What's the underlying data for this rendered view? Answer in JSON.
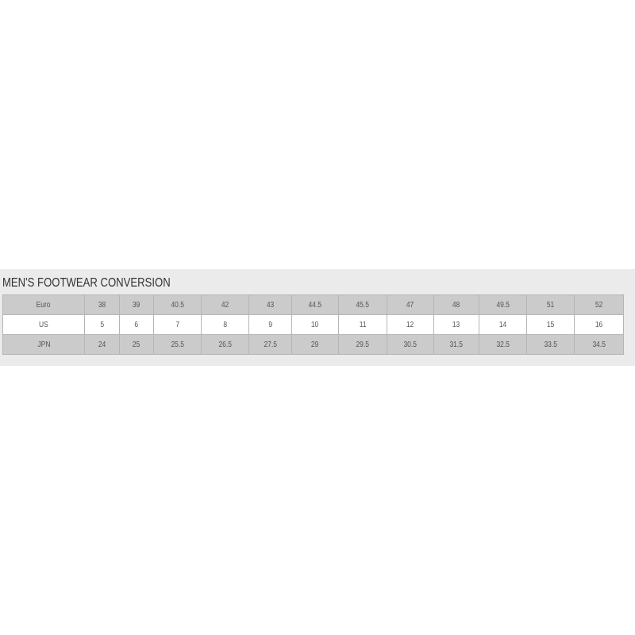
{
  "title": "MEN'S FOOTWEAR CONVERSION",
  "rows": [
    {
      "label": "Euro",
      "values": [
        "38",
        "39",
        "40.5",
        "42",
        "43",
        "44.5",
        "45.5",
        "47",
        "48",
        "49.5",
        "51",
        "52"
      ]
    },
    {
      "label": "US",
      "values": [
        "5",
        "6",
        "7",
        "8",
        "9",
        "10",
        "11",
        "12",
        "13",
        "14",
        "15",
        "16"
      ]
    },
    {
      "label": "JPN",
      "values": [
        "24",
        "25",
        "25.5",
        "26.5",
        "27.5",
        "29",
        "29.5",
        "30.5",
        "31.5",
        "32.5",
        "33.5",
        "34.5"
      ]
    }
  ],
  "colors": {
    "panel": "#ebebeb",
    "row_shaded": "#cbcbcb",
    "row_plain": "#ffffff",
    "border": "#b5b5b5"
  }
}
